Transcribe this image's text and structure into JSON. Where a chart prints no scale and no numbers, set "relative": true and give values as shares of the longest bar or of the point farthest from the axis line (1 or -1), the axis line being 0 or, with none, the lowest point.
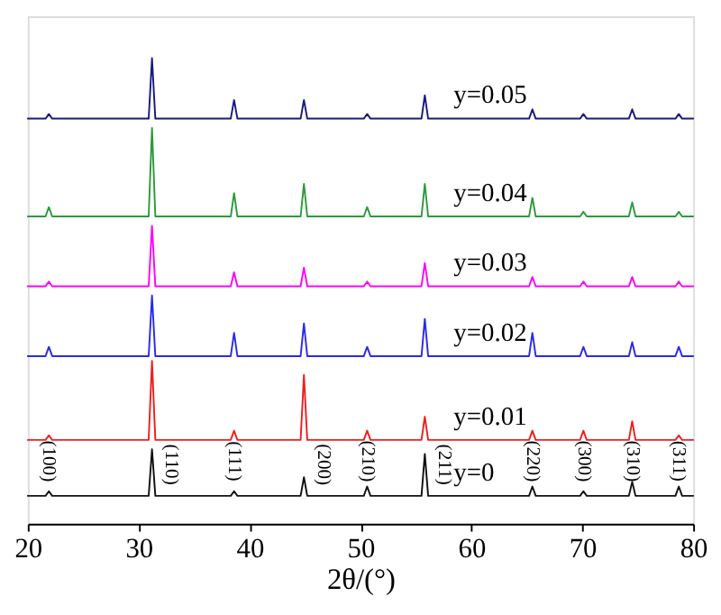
{
  "chart_data": {
    "type": "line",
    "relative": true,
    "xlabel": "2θ/(°)",
    "xlim": [
      20,
      80
    ],
    "xticks": [
      20,
      30,
      40,
      50,
      60,
      70,
      80
    ],
    "x": [
      20,
      21.6,
      21.9,
      22.2,
      30.9,
      31.2,
      31.5,
      38.3,
      38.6,
      38.9,
      44.6,
      44.9,
      45.2,
      50.3,
      50.6,
      50.9,
      55.5,
      55.8,
      56.1,
      65.2,
      65.5,
      65.8,
      69.8,
      70.1,
      70.4,
      74.2,
      74.5,
      74.8,
      78.4,
      78.7,
      79.0,
      80
    ],
    "series": [
      {
        "name": "y=0.05",
        "color": "#1a1a80",
        "values": [
          0.87,
          0.87,
          0.88,
          0.87,
          0.87,
          1.0,
          0.87,
          0.87,
          0.91,
          0.87,
          0.87,
          0.91,
          0.87,
          0.87,
          0.88,
          0.87,
          0.87,
          0.92,
          0.87,
          0.87,
          0.89,
          0.87,
          0.87,
          0.88,
          0.87,
          0.87,
          0.89,
          0.87,
          0.87,
          0.88,
          0.87,
          0.87
        ]
      },
      {
        "name": "y=0.04",
        "color": "#2e9a3a",
        "values": [
          0.66,
          0.66,
          0.68,
          0.66,
          0.66,
          0.85,
          0.66,
          0.66,
          0.71,
          0.66,
          0.66,
          0.73,
          0.66,
          0.66,
          0.68,
          0.66,
          0.66,
          0.73,
          0.66,
          0.66,
          0.7,
          0.66,
          0.66,
          0.67,
          0.66,
          0.66,
          0.69,
          0.66,
          0.66,
          0.67,
          0.66,
          0.66
        ]
      },
      {
        "name": "y=0.03",
        "color": "#ff00ff",
        "values": [
          0.51,
          0.51,
          0.52,
          0.51,
          0.51,
          0.64,
          0.51,
          0.51,
          0.54,
          0.51,
          0.51,
          0.55,
          0.51,
          0.51,
          0.52,
          0.51,
          0.51,
          0.56,
          0.51,
          0.51,
          0.53,
          0.51,
          0.51,
          0.52,
          0.51,
          0.51,
          0.53,
          0.51,
          0.51,
          0.52,
          0.51,
          0.51
        ]
      },
      {
        "name": "y=0.02",
        "color": "#2a2aee",
        "values": [
          0.36,
          0.36,
          0.38,
          0.36,
          0.36,
          0.49,
          0.36,
          0.36,
          0.41,
          0.36,
          0.36,
          0.43,
          0.36,
          0.36,
          0.38,
          0.36,
          0.36,
          0.44,
          0.36,
          0.36,
          0.41,
          0.36,
          0.36,
          0.38,
          0.36,
          0.36,
          0.39,
          0.36,
          0.36,
          0.38,
          0.36,
          0.36
        ]
      },
      {
        "name": "y=0.01",
        "color": "#ee2020",
        "values": [
          0.18,
          0.18,
          0.19,
          0.18,
          0.18,
          0.35,
          0.18,
          0.18,
          0.2,
          0.18,
          0.18,
          0.32,
          0.18,
          0.18,
          0.2,
          0.18,
          0.18,
          0.23,
          0.18,
          0.18,
          0.2,
          0.18,
          0.18,
          0.2,
          0.18,
          0.18,
          0.22,
          0.18,
          0.18,
          0.19,
          0.18,
          0.18
        ]
      },
      {
        "name": "y=0",
        "color": "#111111",
        "values": [
          0.06,
          0.06,
          0.07,
          0.06,
          0.06,
          0.16,
          0.06,
          0.06,
          0.07,
          0.06,
          0.06,
          0.1,
          0.06,
          0.06,
          0.08,
          0.06,
          0.06,
          0.15,
          0.06,
          0.06,
          0.08,
          0.06,
          0.06,
          0.07,
          0.06,
          0.06,
          0.09,
          0.06,
          0.06,
          0.08,
          0.06,
          0.06
        ]
      }
    ],
    "annotations": [
      "(100)",
      "(110)",
      "(111)",
      "(200)",
      "(210)",
      "(211)",
      "(220)",
      "(300)",
      "(310)",
      "(311)"
    ]
  }
}
